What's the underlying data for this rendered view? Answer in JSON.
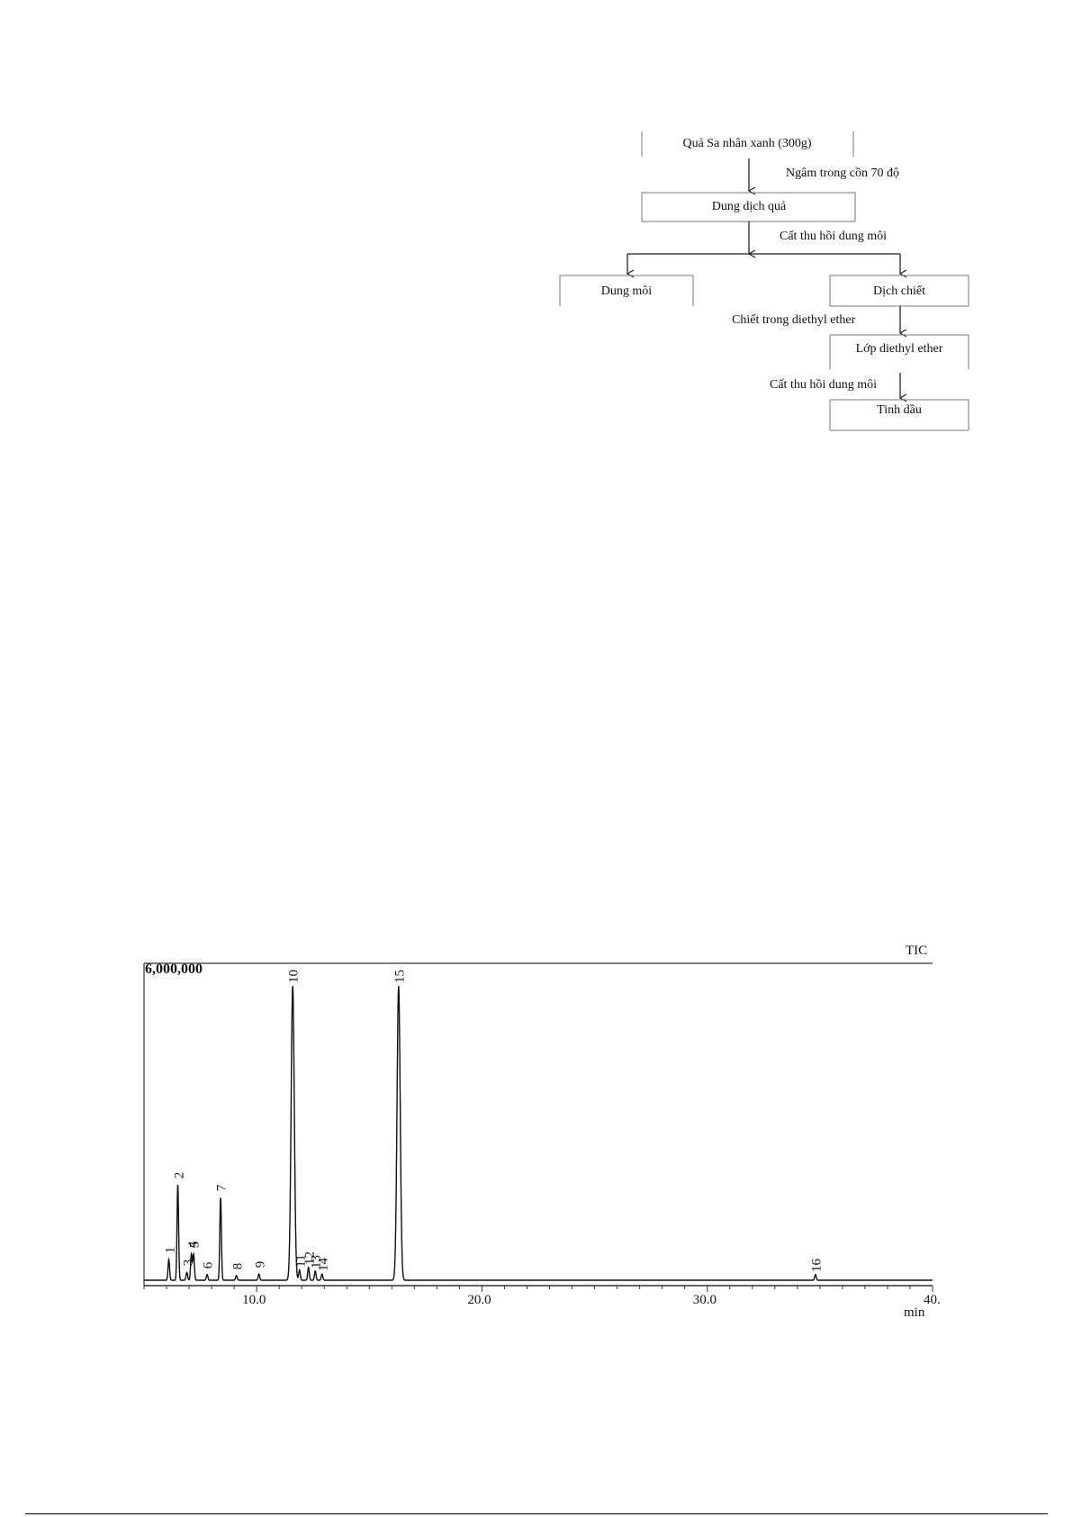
{
  "flowchart": {
    "nodes": {
      "fruit": "Quả Sa nhân xanh (300g)",
      "fruit_solution": "Dung dịch quả",
      "solvent": "Dung môi",
      "extract": "Dịch chiết",
      "ether_layer": "Lớp diethyl ether",
      "essential_oil": "Tinh dầu"
    },
    "edges": {
      "soak": "Ngâm trong cồn 70 độ",
      "distill1": "Cất thu hồi dung môi",
      "extract_ether": "Chiết trong diethyl ether",
      "distill2": "Cất thu hồi dung môi"
    }
  },
  "chart_data": {
    "type": "line",
    "title": "TIC",
    "xlabel": "min",
    "ylabel": "",
    "y_max_label": "6,000,000",
    "xlim": [
      5.0,
      40.0
    ],
    "ylim": [
      0,
      6000000
    ],
    "x_ticks": [
      "10.0",
      "20.0",
      "30.0",
      "40."
    ],
    "x_tick_values": [
      10,
      20,
      30,
      40
    ],
    "grid": false,
    "peaks": [
      {
        "label": "1",
        "x": 6.1,
        "y": 400000
      },
      {
        "label": "2",
        "x": 6.5,
        "y": 1850000
      },
      {
        "label": "3",
        "x": 6.9,
        "y": 150000
      },
      {
        "label": "4",
        "x": 7.1,
        "y": 500000
      },
      {
        "label": "5",
        "x": 7.2,
        "y": 500000
      },
      {
        "label": "6",
        "x": 7.8,
        "y": 110000
      },
      {
        "label": "7",
        "x": 8.4,
        "y": 1600000
      },
      {
        "label": "8",
        "x": 9.1,
        "y": 90000
      },
      {
        "label": "9",
        "x": 10.1,
        "y": 120000
      },
      {
        "label": "10",
        "x": 11.6,
        "y": 5700000
      },
      {
        "label": "11",
        "x": 11.9,
        "y": 200000
      },
      {
        "label": "12",
        "x": 12.3,
        "y": 250000
      },
      {
        "label": "13",
        "x": 12.6,
        "y": 180000
      },
      {
        "label": "14",
        "x": 12.9,
        "y": 120000
      },
      {
        "label": "15",
        "x": 16.3,
        "y": 5700000
      },
      {
        "label": "16",
        "x": 34.8,
        "y": 110000
      }
    ]
  }
}
